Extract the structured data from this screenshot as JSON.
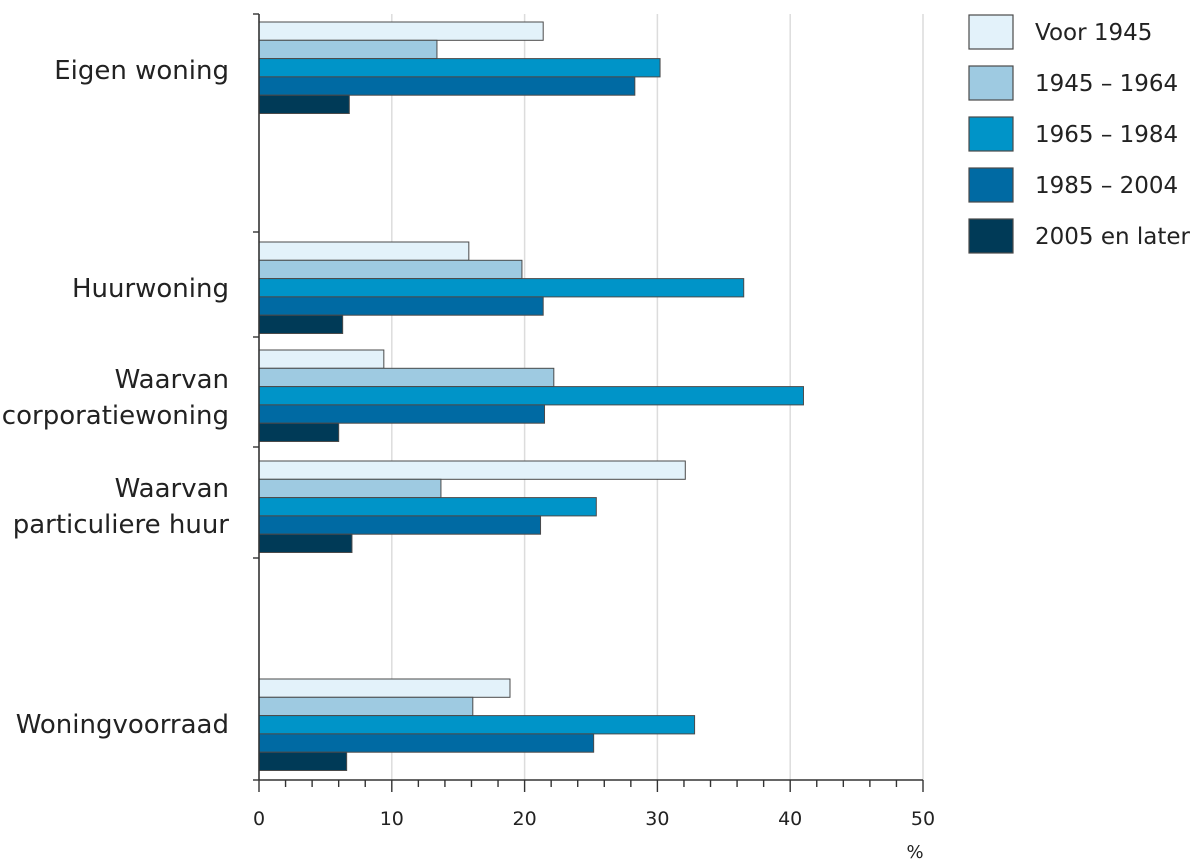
{
  "chart_data": {
    "type": "bar",
    "orientation": "horizontal",
    "title": "",
    "xlabel": "%",
    "ylabel": "",
    "xlim": [
      0,
      50
    ],
    "x_ticks": [
      0,
      10,
      20,
      30,
      40,
      50
    ],
    "grid": true,
    "legend_position": "top-right",
    "categories": [
      {
        "label": "Eigen woning",
        "lines": [
          "Eigen woning"
        ]
      },
      {
        "label": "Huurwoning",
        "lines": [
          "Huurwoning"
        ]
      },
      {
        "label": "Waarvan corporatiewoning",
        "lines": [
          "Waarvan",
          "corporatiewoning"
        ]
      },
      {
        "label": "Waarvan particuliere huur",
        "lines": [
          "Waarvan",
          "particuliere huur"
        ]
      },
      {
        "label": "Woningvoorraad",
        "lines": [
          "Woningvoorraad"
        ]
      }
    ],
    "series": [
      {
        "name": "Voor 1945",
        "color": "#e3f2fa",
        "values": [
          21.4,
          15.8,
          9.4,
          32.1,
          18.9
        ]
      },
      {
        "name": "1945 – 1964",
        "color": "#9ecae1",
        "values": [
          13.4,
          19.8,
          22.2,
          13.7,
          16.1
        ]
      },
      {
        "name": "1965 – 1984",
        "color": "#0094c8",
        "values": [
          30.2,
          36.5,
          41.0,
          25.4,
          32.8
        ]
      },
      {
        "name": "1985 – 2004",
        "color": "#006aa3",
        "values": [
          28.3,
          21.4,
          21.5,
          21.2,
          25.2
        ]
      },
      {
        "name": "2005 en later",
        "color": "#003a57",
        "values": [
          6.8,
          6.3,
          6.0,
          7.0,
          6.6
        ]
      }
    ]
  }
}
